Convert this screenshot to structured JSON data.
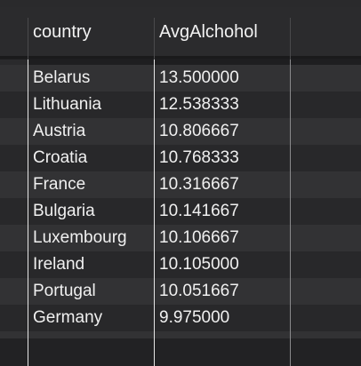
{
  "table": {
    "columns": [
      "country",
      "AvgAlchohol"
    ],
    "rows": [
      {
        "country": "Belarus",
        "avg": "13.500000"
      },
      {
        "country": "Lithuania",
        "avg": "12.538333"
      },
      {
        "country": "Austria",
        "avg": "10.806667"
      },
      {
        "country": "Croatia",
        "avg": "10.768333"
      },
      {
        "country": "France",
        "avg": "10.316667"
      },
      {
        "country": "Bulgaria",
        "avg": "10.141667"
      },
      {
        "country": "Luxembourg",
        "avg": "10.106667"
      },
      {
        "country": "Ireland",
        "avg": "10.105000"
      },
      {
        "country": "Portugal",
        "avg": "10.051667"
      },
      {
        "country": "Germany",
        "avg": "9.975000"
      }
    ]
  }
}
